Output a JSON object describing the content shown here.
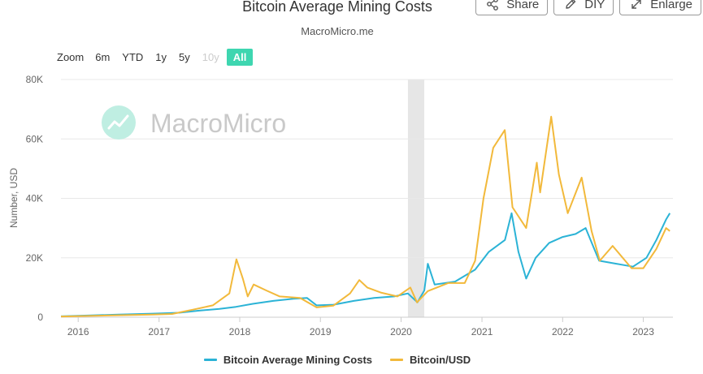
{
  "header": {
    "title": "Bitcoin Average Mining Costs",
    "subtitle": "MacroMicro.me"
  },
  "toolbar": {
    "share_label": "Share",
    "diy_label": "DIY",
    "enlarge_label": "Enlarge",
    "icons": [
      "share-icon",
      "pencil-icon",
      "expand-icon"
    ]
  },
  "zoom": {
    "label": "Zoom",
    "options": [
      "6m",
      "YTD",
      "1y",
      "5y",
      "10y",
      "All"
    ],
    "disabled": "10y",
    "selected": "All"
  },
  "watermark": {
    "text": "MacroMicro"
  },
  "colors": {
    "mining_cost": "#2bb3d6",
    "btc_usd": "#f2b93b",
    "recession_band": "#e6e6e6",
    "grid": "#e8e8e8",
    "zoom_active": "#3ed6b0",
    "watermark": "#bfeee2"
  },
  "chart_data": {
    "type": "line",
    "title": "Bitcoin Average Mining Costs",
    "subtitle": "MacroMicro.me",
    "xlabel": "",
    "ylabel": "Number, USD",
    "x_tick_labels": [
      "2016",
      "2017",
      "2018",
      "2019",
      "2020",
      "2021",
      "2022",
      "2023"
    ],
    "y_tick_labels": [
      "0",
      "20K",
      "40K",
      "60K",
      "80K"
    ],
    "ylim": [
      0,
      80000
    ],
    "xlim": [
      "2015-10-15",
      "2023-05-15"
    ],
    "grid": true,
    "legend_position": "bottom",
    "shaded_period": [
      "2020-02-01",
      "2020-04-15"
    ],
    "series": [
      {
        "name": "Bitcoin Average Mining Costs",
        "points": [
          [
            "2015-10-15",
            300
          ],
          [
            "2016-03-01",
            600
          ],
          [
            "2016-07-01",
            900
          ],
          [
            "2016-12-01",
            1200
          ],
          [
            "2017-04-01",
            1500
          ],
          [
            "2017-07-01",
            2200
          ],
          [
            "2017-10-01",
            2800
          ],
          [
            "2017-12-15",
            3500
          ],
          [
            "2018-03-01",
            4500
          ],
          [
            "2018-06-01",
            5500
          ],
          [
            "2018-09-01",
            6200
          ],
          [
            "2018-11-01",
            6500
          ],
          [
            "2018-12-15",
            4000
          ],
          [
            "2019-03-01",
            4200
          ],
          [
            "2019-06-01",
            5500
          ],
          [
            "2019-09-01",
            6500
          ],
          [
            "2019-12-01",
            7000
          ],
          [
            "2020-02-01",
            8000
          ],
          [
            "2020-03-15",
            5000
          ],
          [
            "2020-04-15",
            9000
          ],
          [
            "2020-05-01",
            18000
          ],
          [
            "2020-06-01",
            11000
          ],
          [
            "2020-09-01",
            12000
          ],
          [
            "2020-12-01",
            16000
          ],
          [
            "2021-02-01",
            22000
          ],
          [
            "2021-04-15",
            26000
          ],
          [
            "2021-05-15",
            35000
          ],
          [
            "2021-06-15",
            22000
          ],
          [
            "2021-07-20",
            13000
          ],
          [
            "2021-09-01",
            20000
          ],
          [
            "2021-11-01",
            25000
          ],
          [
            "2022-01-01",
            27000
          ],
          [
            "2022-03-01",
            28000
          ],
          [
            "2022-04-15",
            30000
          ],
          [
            "2022-06-15",
            19000
          ],
          [
            "2022-09-01",
            18000
          ],
          [
            "2022-11-15",
            17000
          ],
          [
            "2023-01-15",
            20000
          ],
          [
            "2023-03-01",
            26000
          ],
          [
            "2023-04-15",
            33000
          ],
          [
            "2023-05-01",
            35000
          ]
        ]
      },
      {
        "name": "Bitcoin/USD",
        "points": [
          [
            "2015-10-15",
            250
          ],
          [
            "2016-06-01",
            600
          ],
          [
            "2016-12-01",
            900
          ],
          [
            "2017-03-01",
            1100
          ],
          [
            "2017-06-01",
            2500
          ],
          [
            "2017-09-01",
            4000
          ],
          [
            "2017-11-15",
            8000
          ],
          [
            "2017-12-17",
            19500
          ],
          [
            "2018-01-15",
            13000
          ],
          [
            "2018-02-06",
            7000
          ],
          [
            "2018-03-05",
            11000
          ],
          [
            "2018-05-01",
            9000
          ],
          [
            "2018-07-01",
            7000
          ],
          [
            "2018-10-01",
            6500
          ],
          [
            "2018-12-15",
            3300
          ],
          [
            "2019-03-01",
            3900
          ],
          [
            "2019-05-15",
            8000
          ],
          [
            "2019-06-26",
            12500
          ],
          [
            "2019-08-01",
            10000
          ],
          [
            "2019-10-01",
            8300
          ],
          [
            "2019-12-15",
            7000
          ],
          [
            "2020-02-12",
            10000
          ],
          [
            "2020-03-13",
            5000
          ],
          [
            "2020-05-01",
            8800
          ],
          [
            "2020-08-01",
            11500
          ],
          [
            "2020-10-15",
            11500
          ],
          [
            "2020-12-01",
            19000
          ],
          [
            "2021-01-08",
            40000
          ],
          [
            "2021-02-21",
            57000
          ],
          [
            "2021-04-14",
            63000
          ],
          [
            "2021-05-19",
            37000
          ],
          [
            "2021-07-20",
            30000
          ],
          [
            "2021-09-06",
            52000
          ],
          [
            "2021-09-21",
            42000
          ],
          [
            "2021-11-10",
            67500
          ],
          [
            "2021-12-15",
            48000
          ],
          [
            "2022-01-24",
            35000
          ],
          [
            "2022-03-28",
            47000
          ],
          [
            "2022-05-12",
            29000
          ],
          [
            "2022-06-18",
            19000
          ],
          [
            "2022-08-15",
            24000
          ],
          [
            "2022-11-09",
            16500
          ],
          [
            "2023-01-01",
            16500
          ],
          [
            "2023-03-01",
            23000
          ],
          [
            "2023-04-14",
            30000
          ],
          [
            "2023-05-01",
            29000
          ]
        ]
      }
    ]
  }
}
